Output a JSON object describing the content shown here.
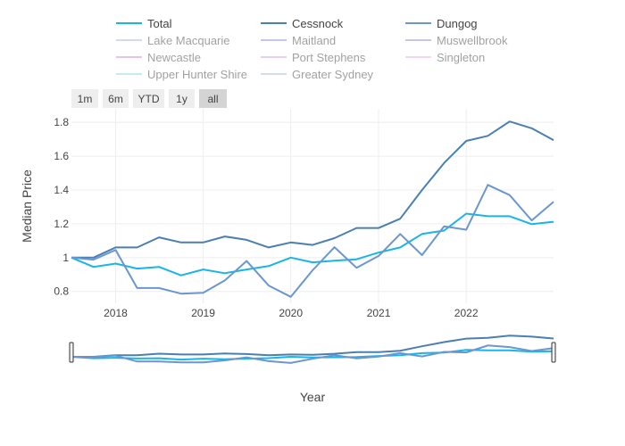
{
  "chart_data": {
    "type": "line",
    "title": "",
    "xlabel": "Year",
    "ylabel": "Median Price",
    "ylim": [
      0.73,
      1.88
    ],
    "xlim": [
      "2017-07-01",
      "2022-12-31"
    ],
    "x_ticks": [
      "2018",
      "2019",
      "2020",
      "2021",
      "2022"
    ],
    "y_ticks": [
      "0.8",
      "1",
      "1.2",
      "1.4",
      "1.6",
      "1.8"
    ],
    "grid": true,
    "legend_position": "top",
    "range_buttons": [
      "1m",
      "6m",
      "YTD",
      "1y",
      "all"
    ],
    "active_range_button": "all",
    "x": [
      "2017-07-01",
      "2017-10-01",
      "2018-01-01",
      "2018-04-01",
      "2018-07-01",
      "2018-10-01",
      "2019-01-01",
      "2019-04-01",
      "2019-07-01",
      "2019-10-01",
      "2020-01-01",
      "2020-04-01",
      "2020-07-01",
      "2020-10-01",
      "2021-01-01",
      "2021-04-01",
      "2021-07-01",
      "2021-10-01",
      "2022-01-01",
      "2022-04-01",
      "2022-07-01",
      "2022-10-01",
      "2022-12-31"
    ],
    "series": [
      {
        "name": "Total",
        "color": "#1ab5e8",
        "visible": true,
        "values": [
          1.0,
          0.945,
          0.965,
          0.935,
          0.945,
          0.895,
          0.93,
          0.908,
          0.93,
          0.95,
          1.0,
          0.972,
          0.982,
          0.99,
          1.03,
          1.06,
          1.14,
          1.16,
          1.26,
          1.245,
          1.245,
          1.198,
          1.212
        ]
      },
      {
        "name": "Cessnock",
        "color": "#4a7fb0",
        "visible": true,
        "values": [
          1.0,
          1.0,
          1.06,
          1.06,
          1.12,
          1.09,
          1.09,
          1.125,
          1.105,
          1.06,
          1.09,
          1.075,
          1.115,
          1.175,
          1.175,
          1.23,
          1.4,
          1.56,
          1.69,
          1.72,
          1.805,
          1.765,
          1.695
        ]
      },
      {
        "name": "Dungog",
        "color": "#6b96cf",
        "visible": true,
        "values": [
          1.0,
          0.988,
          1.045,
          0.82,
          0.82,
          0.787,
          0.792,
          0.865,
          0.98,
          0.835,
          0.768,
          0.925,
          1.062,
          0.94,
          1.01,
          1.14,
          1.015,
          1.185,
          1.165,
          1.43,
          1.37,
          1.22,
          1.33
        ]
      },
      {
        "name": "Lake Macquarie",
        "color": "#a4bad6",
        "visible": false
      },
      {
        "name": "Maitland",
        "color": "#8c8cd9",
        "visible": false
      },
      {
        "name": "Muswellbrook",
        "color": "#9191c4",
        "visible": false
      },
      {
        "name": "Newcastle",
        "color": "#c68fd0",
        "visible": false
      },
      {
        "name": "Port Stephens",
        "color": "#c8a0e0",
        "visible": false
      },
      {
        "name": "Singleton",
        "color": "#e3b3e8",
        "visible": false
      },
      {
        "name": "Upper Hunter Shire",
        "color": "#8ed7ea",
        "visible": false
      },
      {
        "name": "Greater Sydney",
        "color": "#a8c0c8",
        "visible": false
      }
    ]
  }
}
